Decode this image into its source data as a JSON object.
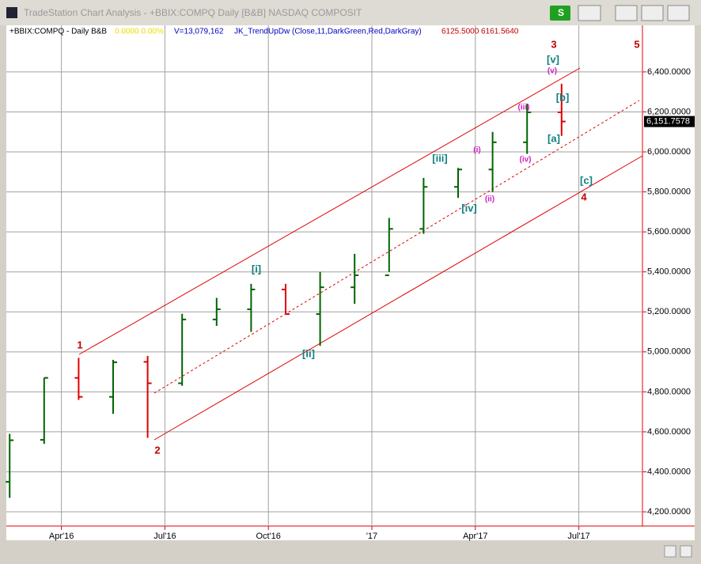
{
  "window_title": "TradeStation Chart Analysis - +BBIX:COMPQ Daily [B&B] NASDAQ COMPOSIT",
  "button_label": "S",
  "chart_data": {
    "type": "ohlc",
    "symbol_label": "+BBIX:COMPQ - Daily  B&B",
    "change_label": "0.0000  0.00%",
    "volume_label": "V=13,079,162",
    "indicator_label": "JK_TrendUpDw (Close,11,DarkGreen,Red,DarkGray)",
    "indicator_values": "6125.5000  6161.5640",
    "x": [
      "2016-02",
      "2016-03",
      "2016-04",
      "2016-05",
      "2016-06",
      "2016-07",
      "2016-08",
      "2016-09",
      "2016-10",
      "2016-11",
      "2016-12",
      "2017-01",
      "2017-02",
      "2017-03",
      "2017-04",
      "2017-05",
      "2017-06"
    ],
    "open": [
      4350,
      4560,
      4870,
      4775,
      4950,
      4843,
      5162,
      5213,
      5312,
      5189,
      5323,
      5383,
      5615,
      5825,
      5912,
      6048,
      6198
    ],
    "high": [
      4590,
      4870,
      4970,
      4960,
      4980,
      5190,
      5270,
      5340,
      5340,
      5400,
      5490,
      5670,
      5870,
      5920,
      6100,
      6240,
      6341
    ],
    "low": [
      4270,
      4540,
      4760,
      4690,
      4570,
      4830,
      5130,
      5100,
      5190,
      5030,
      5240,
      5400,
      5590,
      5770,
      5800,
      5990,
      6080
    ],
    "close": [
      4558,
      4870,
      4775,
      4948,
      4843,
      5162,
      5213,
      5312,
      5189,
      5323,
      5383,
      5615,
      5825,
      5912,
      6048,
      6198,
      6152
    ],
    "up_color": "#006400",
    "down_color": "#e00000",
    "last_price": {
      "value": 6151.7578,
      "label": "6,151.7578"
    },
    "ylim": [
      4129,
      6633
    ],
    "yticks": [
      {
        "value": 4200,
        "label": "4,200.0000"
      },
      {
        "value": 4400,
        "label": "4,400.0000"
      },
      {
        "value": 4600,
        "label": "4,600.0000"
      },
      {
        "value": 4800,
        "label": "4,800.0000"
      },
      {
        "value": 5000,
        "label": "5,000.0000"
      },
      {
        "value": 5200,
        "label": "5,200.0000"
      },
      {
        "value": 5400,
        "label": "5,400.0000"
      },
      {
        "value": 5600,
        "label": "5,600.0000"
      },
      {
        "value": 5800,
        "label": "5,800.0000"
      },
      {
        "value": 6000,
        "label": "6,000.0000"
      },
      {
        "value": 6200,
        "label": "6,200.0000"
      },
      {
        "value": 6400,
        "label": "6,400.0000"
      }
    ],
    "xticks": [
      {
        "value": "2016-04",
        "label": "Apr'16"
      },
      {
        "value": "2016-07",
        "label": "Jul'16"
      },
      {
        "value": "2016-10",
        "label": "Oct'16"
      },
      {
        "value": "2017-01",
        "label": "'17"
      },
      {
        "value": "2017-04",
        "label": "Apr'17"
      },
      {
        "value": "2017-07",
        "label": "Jul'17"
      }
    ],
    "grid": true,
    "annotations": [
      "1",
      "2",
      "3",
      "4",
      "5",
      "[i]",
      "[ii]",
      "[iii]",
      "[iv]",
      "[v]",
      "[a]",
      "[b]",
      "[c]",
      "(i)",
      "(ii)",
      "(iii)",
      "(iv)",
      "(v)"
    ]
  }
}
